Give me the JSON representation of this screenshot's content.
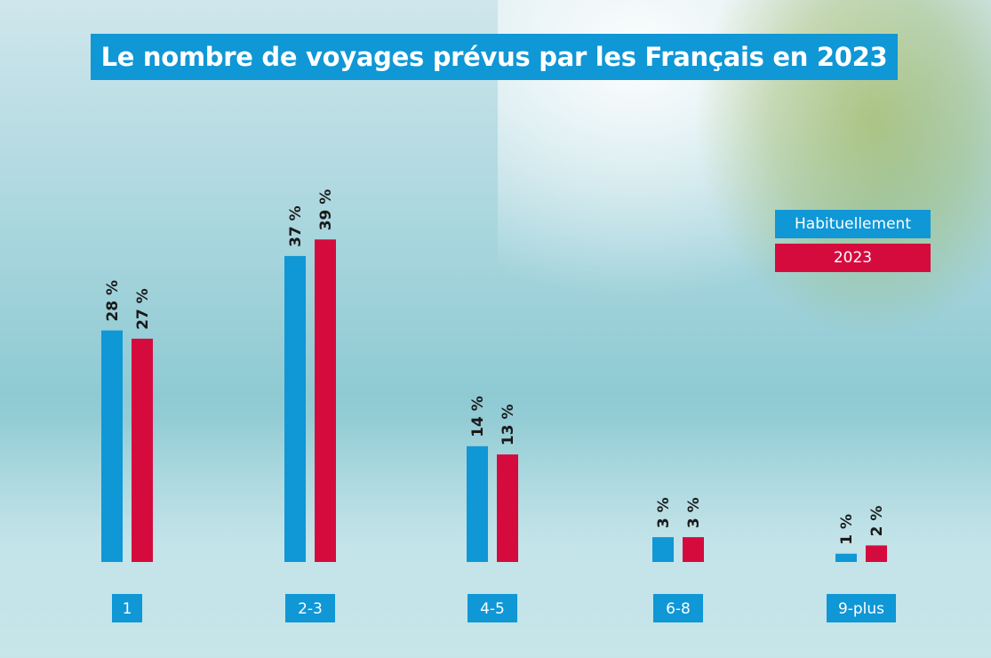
{
  "chart_data": {
    "type": "bar",
    "title": "Le nombre de voyages prévus par les Français en 2023",
    "categories": [
      "1",
      "2-3",
      "4-5",
      "6-8",
      "9-plus"
    ],
    "series": [
      {
        "name": "Habituellement",
        "color": "#0f97d6",
        "values": [
          28,
          37,
          14,
          3,
          1
        ],
        "labels": [
          "28 %",
          "37 %",
          "14 %",
          "3 %",
          "1 %"
        ]
      },
      {
        "name": "2023",
        "color": "#d50b3e",
        "values": [
          27,
          39,
          13,
          3,
          2
        ],
        "labels": [
          "27 %",
          "39 %",
          "13 %",
          "3 %",
          "2 %"
        ]
      }
    ],
    "ylim": [
      0,
      40
    ],
    "legend_position": "right",
    "xlabel": "",
    "ylabel": ""
  }
}
